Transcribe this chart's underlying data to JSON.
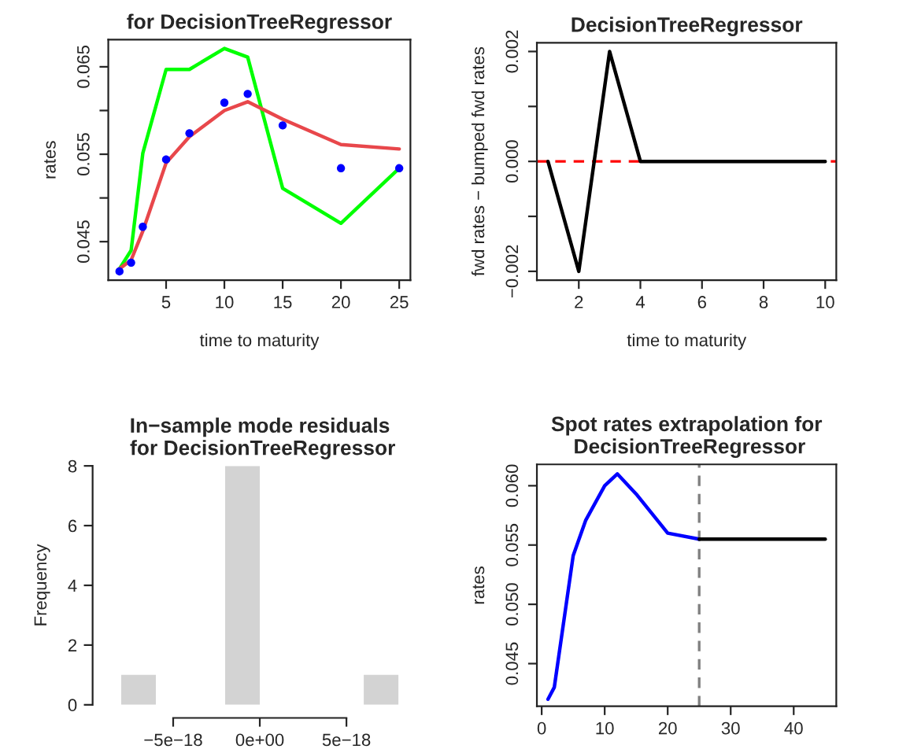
{
  "chart_data": [
    {
      "type": "line",
      "title": "for DecisionTreeRegressor",
      "xlabel": "time to maturity",
      "ylabel": "rates",
      "legend": false,
      "grid": false,
      "x": [
        1,
        2,
        3,
        5,
        7,
        10,
        12,
        15,
        20,
        25
      ],
      "series": [
        {
          "type": "line",
          "color": "#00ff00",
          "values": [
            0.0419,
            0.044,
            0.0551,
            0.0647,
            0.0647,
            0.0671,
            0.0661,
            0.0511,
            0.0471,
            0.0534
          ]
        },
        {
          "type": "line",
          "color": "#e8474b",
          "values": [
            0.0419,
            0.0429,
            0.0462,
            0.054,
            0.057,
            0.06,
            0.061,
            0.059,
            0.0561,
            0.0556
          ]
        },
        {
          "type": "scatter",
          "marker": "circle",
          "color": "#0000ff",
          "values": [
            0.0416,
            0.0426,
            0.0467,
            0.0544,
            0.0574,
            0.0609,
            0.0619,
            0.0583,
            0.0534,
            0.0534
          ]
        }
      ],
      "xlim": [
        0.04,
        25.96
      ],
      "xticks": [
        5,
        10,
        15,
        20,
        25
      ],
      "ylim": [
        0.0406,
        0.0681
      ],
      "yticks": [
        0.045,
        {
          "value": 0.05,
          "label": null
        },
        0.055,
        {
          "value": 0.06,
          "label": null
        },
        0.065
      ]
    },
    {
      "type": "line",
      "title": "DecisionTreeRegressor",
      "xlabel": "time to maturity",
      "ylabel": "fwd rates − bumped fwd rates",
      "legend": false,
      "grid": false,
      "x": [
        1,
        2,
        3,
        4,
        5,
        6,
        7,
        8,
        9,
        10
      ],
      "series": [
        {
          "color": "#000000",
          "values": [
            0,
            -0.002,
            0.002,
            0,
            0,
            0,
            0,
            0,
            0,
            0
          ]
        }
      ],
      "ref_lines": [
        {
          "axis": "y",
          "value": 0,
          "color": "#ff0000",
          "line_style": "dashed"
        }
      ],
      "xlim": [
        0.64,
        10.36
      ],
      "xticks": [
        2,
        4,
        6,
        8,
        10
      ],
      "ylim": [
        -0.00216,
        0.00216
      ],
      "yticks": [
        {
          "value": -0.002,
          "label": "−0.002"
        },
        {
          "value": -0.001,
          "label": null
        },
        {
          "value": 0.0,
          "label": "0.000"
        },
        {
          "value": 0.001,
          "label": null
        },
        {
          "value": 0.002,
          "label": "0.002"
        }
      ]
    },
    {
      "type": "histogram",
      "title": "In−sample mode residuals\n for DecisionTreeRegressor",
      "ylabel": "Frequency",
      "legend": false,
      "grid": false,
      "bins": [
        -8e-18,
        -6e-18,
        -4e-18,
        -2e-18,
        0,
        2e-18,
        4e-18,
        6e-18,
        8e-18
      ],
      "values": [
        1,
        0,
        0,
        8,
        0,
        0,
        0,
        1
      ],
      "color": "#d3d3d3",
      "xlim": [
        -8.64e-18,
        8.64e-18
      ],
      "xticks": [
        {
          "value": -5e-18,
          "label": "−5e−18"
        },
        {
          "value": 0,
          "label": "0e+00"
        },
        {
          "value": 5e-18,
          "label": "5e−18"
        }
      ],
      "ylim": [
        0,
        8
      ],
      "yticks": [
        0,
        2,
        4,
        6,
        8
      ]
    },
    {
      "type": "line",
      "title": "Spot rates extrapolation for\n DecisionTreeRegressor",
      "ylabel": "rates",
      "legend": false,
      "grid": false,
      "series": [
        {
          "color": "#0000ff",
          "x": [
            1,
            2,
            5,
            7,
            10,
            12,
            15,
            20,
            25
          ],
          "values": [
            0.042,
            0.043,
            0.0541,
            0.0571,
            0.06,
            0.061,
            0.0593,
            0.056,
            0.0555
          ]
        },
        {
          "color": "#000000",
          "x": [
            25,
            45
          ],
          "values": [
            0.0555,
            0.0555
          ]
        }
      ],
      "ref_lines": [
        {
          "axis": "x",
          "value": 25,
          "color": "#808080",
          "line_style": "dashed"
        }
      ],
      "xlim": [
        -0.76,
        46.76
      ],
      "xticks": [
        0,
        10,
        20,
        30,
        40
      ],
      "ylim": [
        0.0414,
        0.0618
      ],
      "yticks": [
        {
          "value": 0.045,
          "label": "0.045"
        },
        {
          "value": 0.05,
          "label": "0.050"
        },
        {
          "value": 0.055,
          "label": "0.055"
        },
        {
          "value": 0.06,
          "label": "0.060"
        }
      ]
    }
  ]
}
